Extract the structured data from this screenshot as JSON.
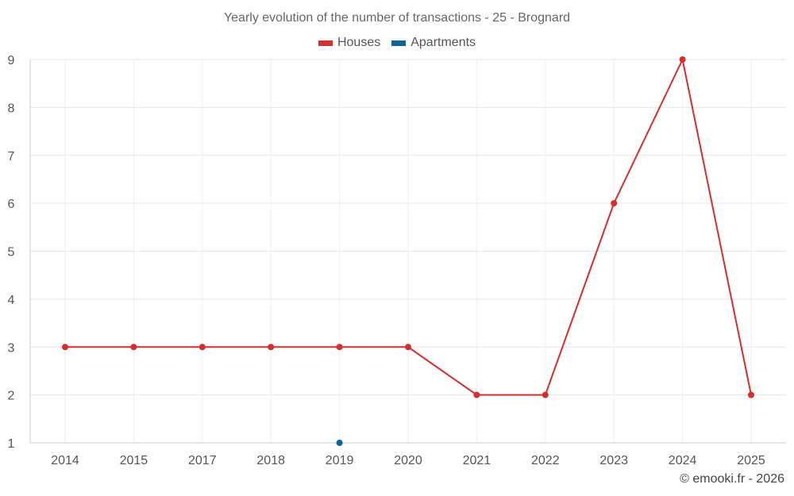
{
  "chart_data": {
    "type": "line",
    "title": "Yearly evolution of the number of transactions - 25 - Brognard",
    "categories": [
      "2014",
      "2015",
      "2017",
      "2018",
      "2019",
      "2020",
      "2021",
      "2022",
      "2023",
      "2024",
      "2025"
    ],
    "series": [
      {
        "name": "Houses",
        "color": "#d32f2f",
        "values": [
          3,
          3,
          3,
          3,
          3,
          3,
          2,
          2,
          6,
          9,
          2
        ]
      },
      {
        "name": "Apartments",
        "color": "#0d6496",
        "values": [
          null,
          null,
          null,
          null,
          1,
          null,
          null,
          null,
          null,
          null,
          null
        ]
      }
    ],
    "y_ticks": [
      "1",
      "2",
      "3",
      "4",
      "5",
      "6",
      "7",
      "8",
      "9"
    ],
    "ylim": [
      1,
      9
    ],
    "grid": true,
    "legend_position": "top-center"
  },
  "credit": "© emooki.fr - 2026"
}
